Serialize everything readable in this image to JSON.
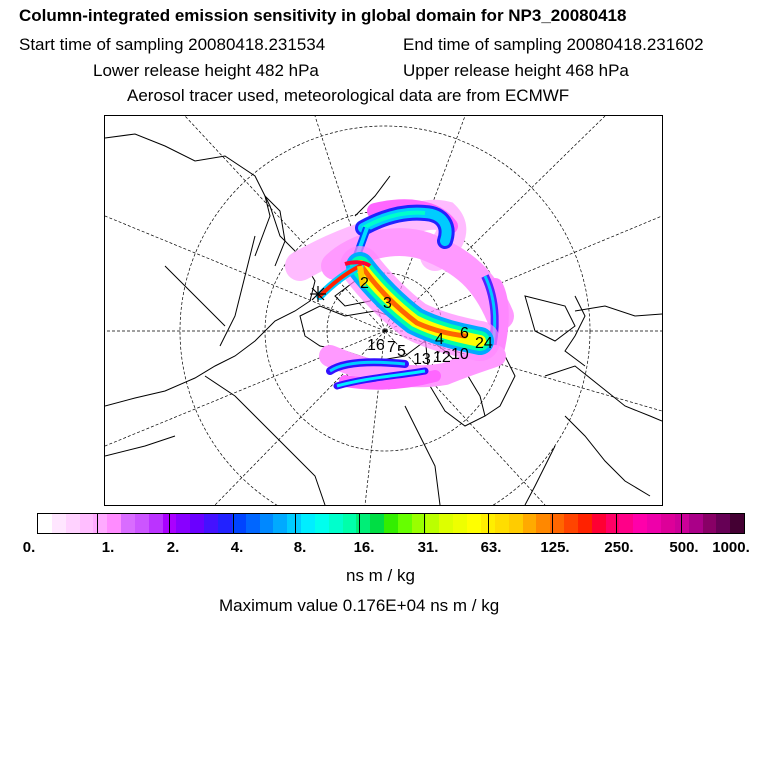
{
  "header": {
    "title": "Column-integrated emission sensitivity in global domain for NP3_20080418",
    "start_time": "Start time of sampling 20080418.231534",
    "end_time": "End time of sampling 20080418.231602",
    "lower_height": "Lower release height  482 hPa",
    "upper_height": "Upper release height  468 hPa",
    "tracer_note": "Aerosol tracer used, meteorological data are from ECMWF"
  },
  "map": {
    "labels": [
      {
        "text": "2"
      },
      {
        "text": "3"
      },
      {
        "text": "4"
      },
      {
        "text": "5"
      },
      {
        "text": "13"
      },
      {
        "text": "12"
      },
      {
        "text": "10"
      },
      {
        "text": "24"
      },
      {
        "text": "16"
      },
      {
        "text": "7"
      },
      {
        "text": "6"
      }
    ]
  },
  "colorbar": {
    "colors": [
      "#ffffff",
      "#ffe6ff",
      "#ffd2ff",
      "#ffbeff",
      "#ffaaff",
      "#ff8cff",
      "#d96cff",
      "#cc55ff",
      "#bb33ff",
      "#aa00ff",
      "#8800ff",
      "#6a00ff",
      "#4411ff",
      "#2222ff",
      "#0044ff",
      "#0066ff",
      "#0088ff",
      "#00aaff",
      "#00ccff",
      "#00eeff",
      "#00ffee",
      "#00ffcc",
      "#00ffaa",
      "#00ee77",
      "#00dd44",
      "#33ee00",
      "#66ff00",
      "#99ff00",
      "#bbff00",
      "#ddff00",
      "#eeff00",
      "#ffff00",
      "#ffee00",
      "#ffdd00",
      "#ffcc00",
      "#ffaa00",
      "#ff8800",
      "#ff6600",
      "#ff4400",
      "#ff2200",
      "#ff0033",
      "#ff0066",
      "#ff0088",
      "#ff00aa",
      "#ee00aa",
      "#dd0099",
      "#cc0099",
      "#aa0088",
      "#880066",
      "#660055",
      "#440033"
    ],
    "ticks": [
      "0.",
      "1.",
      "2.",
      "4.",
      "8.",
      "16.",
      "31.",
      "63.",
      "125.",
      "250.",
      "500.",
      "1000."
    ],
    "unit": "ns m / kg",
    "max_value": "Maximum value  0.176E+04 ns m / kg"
  }
}
